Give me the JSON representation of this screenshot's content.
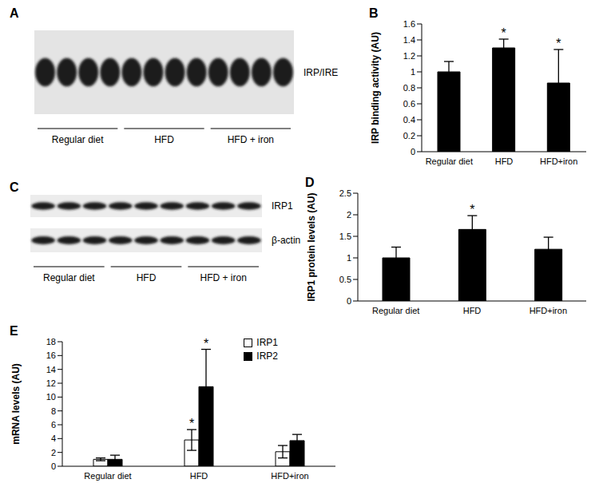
{
  "blots": [
    {
      "panel": "A",
      "rows": [
        {
          "label": "IRP/IRE"
        }
      ],
      "groups": [
        "Regular diet",
        "HFD",
        "HFD + iron"
      ],
      "lanes_per_group": 4
    },
    {
      "panel": "C",
      "rows": [
        {
          "label": "IRP1"
        },
        {
          "label": "β-actin"
        }
      ],
      "groups": [
        "Regular diet",
        "HFD",
        "HFD + iron"
      ],
      "lanes_per_group": 3
    }
  ],
  "chart_data": [
    {
      "panel": "B",
      "type": "bar",
      "y_label": "IRP binding activity (AU)",
      "categories": [
        "Regular diet",
        "HFD",
        "HFD+iron"
      ],
      "values": [
        1.0,
        1.3,
        0.86
      ],
      "errors": [
        0.13,
        0.11,
        0.42
      ],
      "significance": [
        null,
        "*",
        "*"
      ],
      "color": "#000000",
      "ylim": [
        0,
        1.6
      ],
      "yticks": [
        0,
        0.2,
        0.4,
        0.6,
        0.8,
        1,
        1.2,
        1.4,
        1.6
      ]
    },
    {
      "panel": "D",
      "type": "bar",
      "y_label": "IRP1 protein levels (AU)",
      "categories": [
        "Regular diet",
        "HFD",
        "HFD+iron"
      ],
      "values": [
        1.0,
        1.66,
        1.2
      ],
      "errors": [
        0.25,
        0.32,
        0.28
      ],
      "significance": [
        null,
        "*",
        null
      ],
      "color": "#000000",
      "ylim": [
        0,
        2.5
      ],
      "yticks": [
        0,
        0.5,
        1,
        1.5,
        2,
        2.5
      ]
    },
    {
      "panel": "E",
      "type": "bar",
      "y_label": "mRNA levels (AU)",
      "categories": [
        "Regular diet",
        "HFD",
        "HFD+iron"
      ],
      "legend": "upper right",
      "series": [
        {
          "name": "IRP1",
          "color": "#ffffff",
          "values": [
            1.0,
            3.8,
            2.1
          ],
          "errors": [
            0.2,
            1.5,
            0.9
          ],
          "significance": [
            null,
            "*",
            null
          ]
        },
        {
          "name": "IRP2",
          "color": "#000000",
          "values": [
            1.0,
            11.5,
            3.7
          ],
          "errors": [
            0.6,
            5.4,
            0.9
          ],
          "significance": [
            null,
            "*",
            null
          ]
        }
      ],
      "ylim": [
        0,
        18
      ],
      "yticks": [
        0,
        2,
        4,
        6,
        8,
        10,
        12,
        14,
        16,
        18
      ]
    }
  ]
}
